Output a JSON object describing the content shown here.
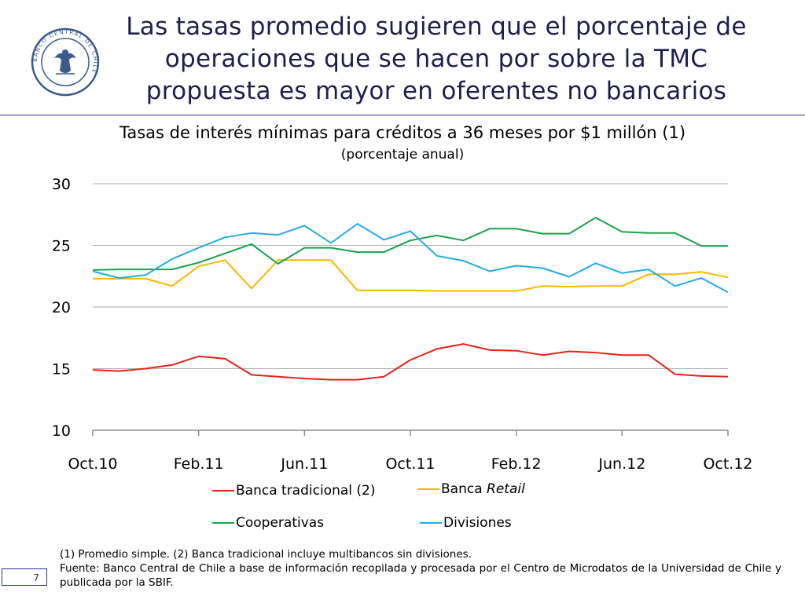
{
  "slide": {
    "title": "Las tasas promedio sugieren que el porcentaje de operaciones que se hacen por sobre la TMC propuesta es mayor en oferentes no bancarios",
    "logo_text": "BANCO CENTRAL DE CHILE",
    "page_number": "7",
    "accent_color": "#2e3192"
  },
  "chart_data": {
    "type": "line",
    "title": "Tasas de interés mínimas para créditos a 36 meses por $1 millón (1)",
    "subtitle": "(porcentaje anual)",
    "xlabel": "",
    "ylabel": "",
    "ylim": [
      10,
      30
    ],
    "yticks": [
      "10",
      "15",
      "20",
      "25",
      "30"
    ],
    "grid": true,
    "legend_position": "bottom",
    "x_tick_labels": [
      "Oct.10",
      "Feb.11",
      "Jun.11",
      "Oct.11",
      "Feb.12",
      "Jun.12",
      "Oct.12"
    ],
    "x": [
      "Oct.10",
      "Nov.10",
      "Dic.10",
      "Ene.11",
      "Feb.11",
      "Mar.11",
      "Abr.11",
      "May.11",
      "Jun.11",
      "Jul.11",
      "Ago.11",
      "Sep.11",
      "Oct.11",
      "Nov.11",
      "Dic.11",
      "Ene.12",
      "Feb.12",
      "Mar.12",
      "Abr.12",
      "May.12",
      "Jun.12",
      "Jul.12",
      "Ago.12",
      "Sep.12",
      "Oct.12"
    ],
    "series": [
      {
        "name": "Banca tradicional (2)",
        "color": "#e3241b",
        "values": [
          14.9,
          14.8,
          15.0,
          15.3,
          16.0,
          15.8,
          14.5,
          14.35,
          14.2,
          14.1,
          14.1,
          14.35,
          15.7,
          16.6,
          17.0,
          16.5,
          16.45,
          16.1,
          16.4,
          16.3,
          16.1,
          16.1,
          14.55,
          14.4,
          14.35
        ]
      },
      {
        "name": "Banca ",
        "name_italic": "Retail",
        "color": "#f6b800",
        "values": [
          22.3,
          22.3,
          22.3,
          21.7,
          23.3,
          23.8,
          21.5,
          23.8,
          23.8,
          23.8,
          21.35,
          21.35,
          21.35,
          21.3,
          21.3,
          21.3,
          21.3,
          21.7,
          21.65,
          21.7,
          21.7,
          22.65,
          22.65,
          22.85,
          22.4
        ]
      },
      {
        "name": "Cooperativas",
        "color": "#1aa24c",
        "values": [
          23.0,
          23.05,
          23.05,
          23.05,
          23.6,
          24.35,
          25.1,
          23.5,
          24.8,
          24.8,
          24.45,
          24.45,
          25.4,
          25.8,
          25.4,
          26.35,
          26.35,
          25.95,
          25.95,
          27.25,
          26.1,
          26.0,
          26.0,
          24.95,
          24.95
        ]
      },
      {
        "name": "Divisiones",
        "color": "#27aae1",
        "values": [
          22.9,
          22.35,
          22.6,
          23.9,
          24.8,
          25.65,
          26.0,
          25.85,
          26.6,
          25.2,
          26.75,
          25.45,
          26.15,
          24.15,
          23.75,
          22.9,
          23.35,
          23.15,
          22.45,
          23.55,
          22.75,
          23.05,
          21.7,
          22.35,
          21.2
        ]
      }
    ]
  },
  "footnotes": {
    "note": "(1) Promedio simple. (2) Banca tradicional incluye multibancos sin divisiones.",
    "source": "Fuente: Banco Central de Chile a base de información recopilada y procesada por el Centro de Microdatos de la Universidad de Chile y publicada por la SBIF."
  }
}
